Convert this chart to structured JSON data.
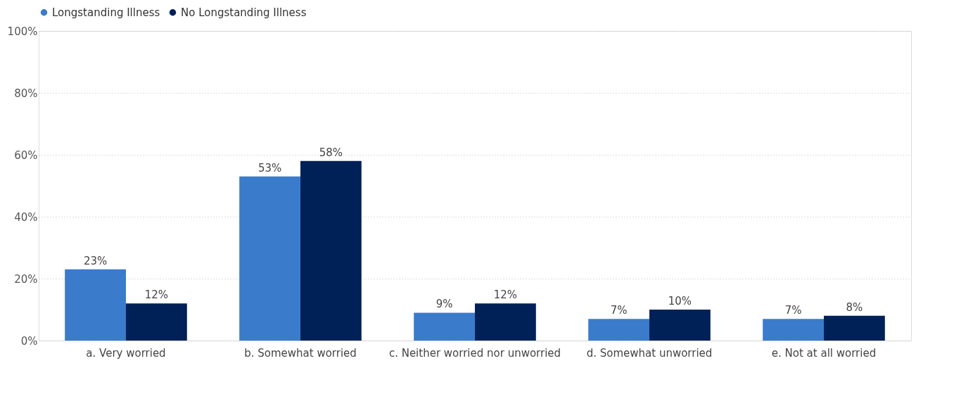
{
  "chart_data": {
    "type": "bar",
    "categories": [
      "a. Very worried",
      "b. Somewhat worried",
      "c. Neither worried nor unworried",
      "d. Somewhat unworried",
      "e. Not at all worried"
    ],
    "series": [
      {
        "name": "Longstanding Illness",
        "color": "#3b7bcb",
        "values": [
          23,
          53,
          9,
          7,
          7
        ],
        "value_labels": [
          "23%",
          "53%",
          "9%",
          "7%",
          "7%"
        ]
      },
      {
        "name": "No Longstanding Illness",
        "color": "#002157",
        "values": [
          12,
          58,
          12,
          10,
          8
        ],
        "value_labels": [
          "12%",
          "58%",
          "12%",
          "10%",
          "8%"
        ]
      }
    ],
    "ylim": [
      0,
      100
    ],
    "yticks": [
      {
        "value": 0,
        "label": "0%"
      },
      {
        "value": 20,
        "label": "20%"
      },
      {
        "value": 40,
        "label": "40%"
      },
      {
        "value": 60,
        "label": "60%"
      },
      {
        "value": 80,
        "label": "80%"
      },
      {
        "value": 100,
        "label": "100%"
      }
    ],
    "grid": "y",
    "legend": "top"
  }
}
